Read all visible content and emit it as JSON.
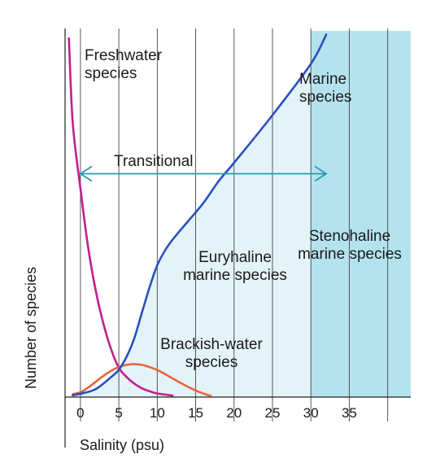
{
  "chart_data": {
    "type": "line",
    "xlabel": "Salinity (psu)",
    "ylabel": "Number of species",
    "x_ticks": [
      "0",
      "5",
      "10",
      "15",
      "20",
      "25",
      "30",
      "35"
    ],
    "xlim": [
      -2,
      43
    ],
    "ylim": [
      0,
      100
    ],
    "grid": "vertical",
    "series": [
      {
        "name": "Freshwater species",
        "color": "#c21e8c",
        "x": [
          -1.5,
          -1,
          0,
          1,
          2,
          3,
          4,
          5,
          6,
          7,
          8,
          9,
          10,
          12
        ],
        "y": [
          98,
          75,
          57,
          41,
          29,
          20,
          13,
          8,
          5.5,
          3.7,
          2.4,
          1.6,
          1.0,
          0.4
        ]
      },
      {
        "name": "Brackish-water species",
        "color": "#e8623a",
        "x": [
          -1,
          0,
          1,
          2,
          3,
          4,
          5,
          6,
          7,
          8,
          9,
          10,
          11,
          12,
          13,
          14,
          15,
          16,
          17
        ],
        "y": [
          0.8,
          1.3,
          2.6,
          4.2,
          5.8,
          7.2,
          8.2,
          8.8,
          9.0,
          8.8,
          8.2,
          7.4,
          6.3,
          5.1,
          3.9,
          2.8,
          1.8,
          1.0,
          0.3
        ]
      },
      {
        "name": "Marine species",
        "color": "#2a4fbf",
        "x": [
          -1,
          0,
          2,
          4,
          5,
          6,
          7,
          8,
          9,
          10,
          11,
          12,
          14,
          16,
          18,
          20,
          25,
          30,
          32
        ],
        "y": [
          0.5,
          0.9,
          2.2,
          5.5,
          7.5,
          11,
          16,
          23,
          30,
          36,
          40,
          43,
          48,
          53,
          59,
          64,
          77,
          91,
          99
        ]
      }
    ],
    "annotations": {
      "freshwater": "Freshwater species",
      "marine": "Marine species",
      "transitional": "Transitional",
      "euryhaline": "Euryhaline marine species",
      "stenohaline": "Stenohaline marine species",
      "brackish": "Brackish-water species"
    },
    "transitional_range": [
      0,
      32
    ],
    "transitional_level": 61,
    "euryhaline_fill_color": "#e4f3f8",
    "stenohaline_fill_color": "#b4e3ee",
    "stenohaline_start": 30
  }
}
